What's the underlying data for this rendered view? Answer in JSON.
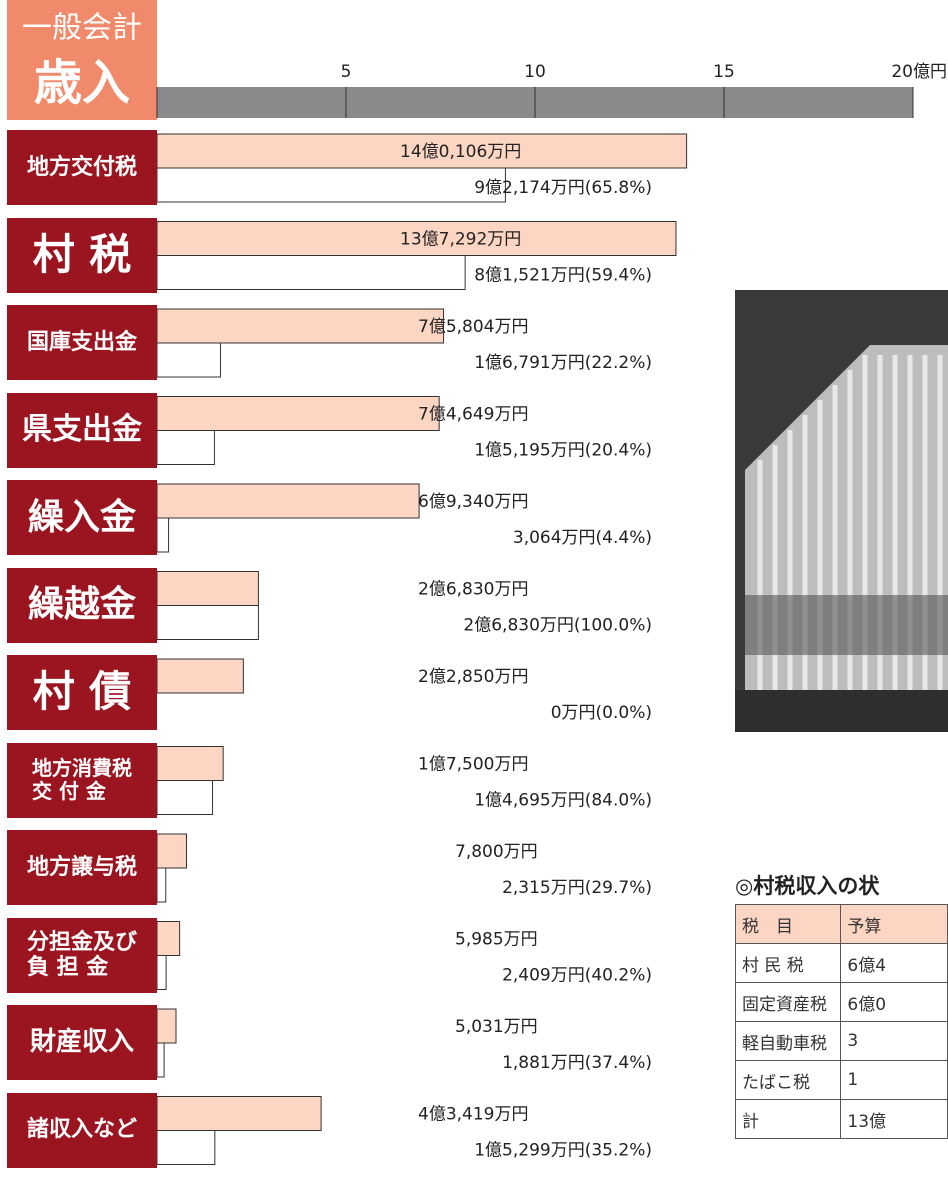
{
  "chart_data": {
    "type": "bar",
    "orientation": "horizontal",
    "header": [
      "一般会計",
      "歳入"
    ],
    "categories": [
      "地方交付税",
      "村 税",
      "国庫支出金",
      "県支出金",
      "繰入金",
      "繰越金",
      "村 債",
      "地方消費税\n交 付 金",
      "地方譲与税",
      "分担金及び\n負 担 金",
      "財産収入",
      "諸収入など"
    ],
    "xlim": [
      0,
      20
    ],
    "xticks": [
      0,
      5,
      10,
      15,
      {
        "value": 20,
        "label": "20億円"
      }
    ],
    "series": [
      {
        "color": "#fcd5c3",
        "values": [
          14.0106,
          13.7292,
          7.5804,
          7.4649,
          6.934,
          2.683,
          2.285,
          1.75,
          0.78,
          0.5985,
          0.5031,
          4.3419
        ],
        "value_labels": [
          "14億0,106万円",
          "13億7,292万円",
          "7億5,804万円",
          "7億4,649万円",
          "6億9,340万円",
          "2億6,830万円",
          "2億2,850万円",
          "1億7,500万円",
          "7,800万円",
          "5,985万円",
          "5,031万円",
          "4億3,419万円"
        ]
      },
      {
        "color": "#ffffff",
        "values": [
          9.2174,
          8.1521,
          1.6791,
          1.5195,
          0.3064,
          2.683,
          0,
          1.4695,
          0.2315,
          0.2409,
          0.1881,
          1.5299
        ],
        "value_labels": [
          "9億2,174万円(65.8%)",
          "8億1,521万円(59.4%)",
          "1億6,791万円(22.2%)",
          "1億5,195万円(20.4%)",
          "3,064万円(4.4%)",
          "2億6,830万円(100.0%)",
          "0万円(0.0%)",
          "1億4,695万円(84.0%)",
          "2,315万円(29.7%)",
          "2,409万円(40.2%)",
          "1,881万円(37.4%)",
          "1億5,299万円(35.2%)"
        ]
      }
    ]
  },
  "table": {
    "title": "◎村税収入の状",
    "header": [
      "税　目",
      "予算"
    ],
    "rows": [
      [
        "村 民 税",
        "6億4"
      ],
      [
        "固定資産税",
        "6億0"
      ],
      [
        "軽自動車税",
        "3"
      ],
      [
        "たばこ税",
        "1"
      ],
      [
        "計",
        "13億"
      ]
    ]
  }
}
